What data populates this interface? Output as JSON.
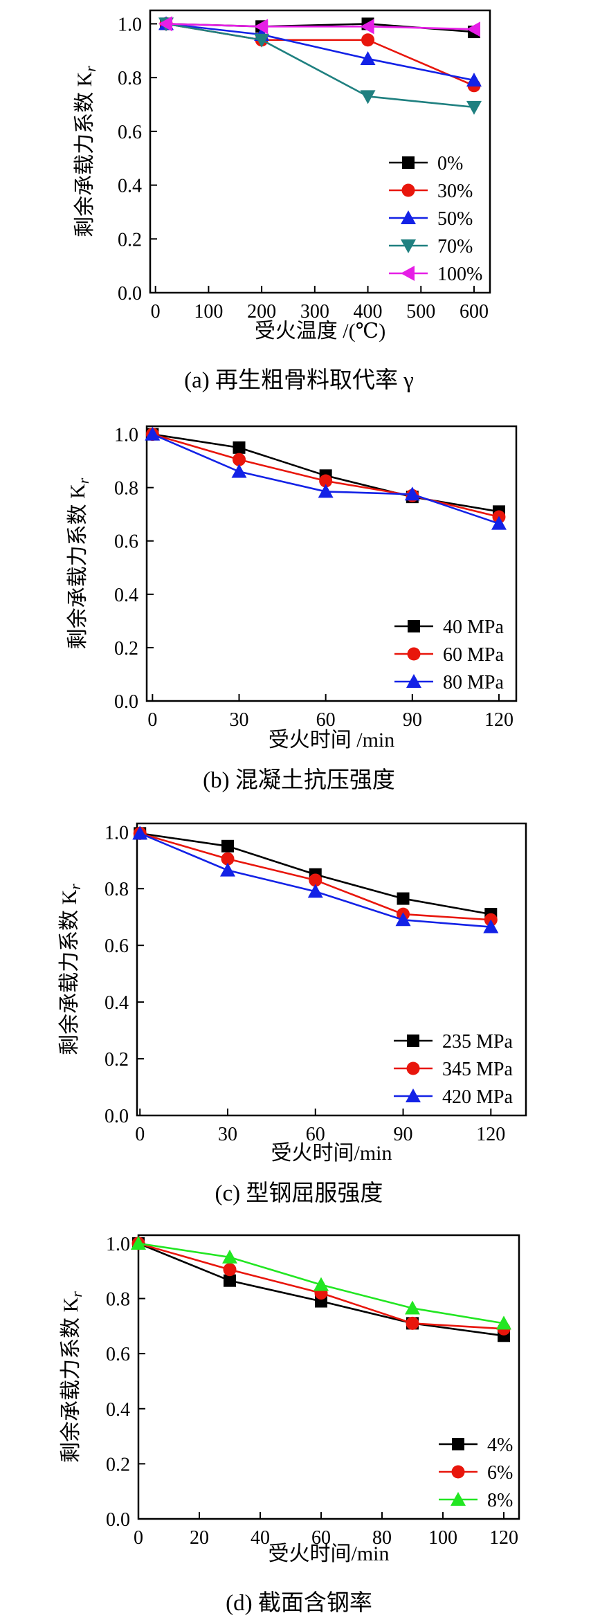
{
  "chart_data": [
    {
      "type": "line",
      "panel": "a",
      "caption": "(a)  再生粗骨料取代率 γ",
      "xlabel": "受火温度 /(℃)",
      "ylabel": "剩余承载力系数 K",
      "ylabel_sub": "r",
      "xlim": [
        -10,
        630
      ],
      "ylim": [
        0.0,
        1.05
      ],
      "xticks": [
        0,
        100,
        200,
        300,
        400,
        500,
        600
      ],
      "yticks": [
        0.0,
        0.2,
        0.4,
        0.6,
        0.8,
        1.0
      ],
      "x": [
        20,
        200,
        400,
        600
      ],
      "legend_position": "bottom-right",
      "series": [
        {
          "name": "0%",
          "color": "#000000",
          "marker": "square",
          "values": [
            1.0,
            0.99,
            1.0,
            0.97
          ]
        },
        {
          "name": "30%",
          "color": "#e8160c",
          "marker": "circle",
          "values": [
            1.0,
            0.94,
            0.94,
            0.77
          ]
        },
        {
          "name": "50%",
          "color": "#1322e6",
          "marker": "triangle-up",
          "values": [
            1.0,
            0.96,
            0.87,
            0.79
          ]
        },
        {
          "name": "70%",
          "color": "#1f8080",
          "marker": "triangle-down",
          "values": [
            1.0,
            0.94,
            0.73,
            0.69
          ]
        },
        {
          "name": "100%",
          "color": "#e61ee6",
          "marker": "triangle-left",
          "values": [
            1.0,
            0.99,
            0.99,
            0.98
          ]
        }
      ]
    },
    {
      "type": "line",
      "panel": "b",
      "caption": "(b)  混凝土抗压强度",
      "xlabel": "受火时间 /min",
      "ylabel": "剩余承载力系数 K",
      "ylabel_sub": "r",
      "xlim": [
        -2,
        126
      ],
      "ylim": [
        0.0,
        1.03
      ],
      "xticks": [
        0,
        30,
        60,
        90,
        120
      ],
      "yticks": [
        0.0,
        0.2,
        0.4,
        0.6,
        0.8,
        1.0
      ],
      "x": [
        0,
        30,
        60,
        90,
        120
      ],
      "legend_position": "bottom-right",
      "series": [
        {
          "name": "40 MPa",
          "color": "#000000",
          "marker": "square",
          "values": [
            1.0,
            0.95,
            0.845,
            0.765,
            0.71
          ]
        },
        {
          "name": "60 MPa",
          "color": "#e8160c",
          "marker": "circle",
          "values": [
            1.0,
            0.905,
            0.825,
            0.77,
            0.69
          ]
        },
        {
          "name": "80 MPa",
          "color": "#1322e6",
          "marker": "triangle-up",
          "values": [
            1.0,
            0.86,
            0.785,
            0.775,
            0.665
          ]
        }
      ]
    },
    {
      "type": "line",
      "panel": "c",
      "caption": "(c)  型钢屈服强度",
      "xlabel": "受火时间/min",
      "ylabel": "剩余承载力系数 K",
      "ylabel_sub": "r",
      "xlim": [
        -1,
        132
      ],
      "ylim": [
        0.0,
        1.03
      ],
      "xticks": [
        0,
        30,
        60,
        90,
        120
      ],
      "yticks": [
        0.0,
        0.2,
        0.4,
        0.6,
        0.8,
        1.0
      ],
      "x": [
        0,
        30,
        60,
        90,
        120
      ],
      "legend_position": "bottom-right",
      "series": [
        {
          "name": "235 MPa",
          "color": "#000000",
          "marker": "square",
          "values": [
            0.995,
            0.95,
            0.85,
            0.765,
            0.71
          ]
        },
        {
          "name": "345 MPa",
          "color": "#e8160c",
          "marker": "circle",
          "values": [
            0.995,
            0.905,
            0.83,
            0.71,
            0.69
          ]
        },
        {
          "name": "420 MPa",
          "color": "#1322e6",
          "marker": "triangle-up",
          "values": [
            0.995,
            0.865,
            0.79,
            0.69,
            0.665
          ]
        }
      ]
    },
    {
      "type": "line",
      "panel": "d",
      "caption": "(d)  截面含钢率",
      "xlabel": "受火时间/min",
      "ylabel": "剩余承载力系数 K",
      "ylabel_sub": "r",
      "xlim": [
        0,
        125
      ],
      "ylim": [
        0.0,
        1.03
      ],
      "xticks": [
        0,
        20,
        40,
        60,
        80,
        100,
        120
      ],
      "yticks": [
        0.0,
        0.2,
        0.4,
        0.6,
        0.8,
        1.0
      ],
      "x": [
        0,
        30,
        60,
        90,
        120
      ],
      "legend_position": "bottom-right",
      "series": [
        {
          "name": "4%",
          "color": "#000000",
          "marker": "square",
          "values": [
            1.0,
            0.865,
            0.79,
            0.71,
            0.665
          ]
        },
        {
          "name": "6%",
          "color": "#e8160c",
          "marker": "circle",
          "values": [
            1.0,
            0.905,
            0.82,
            0.71,
            0.69
          ]
        },
        {
          "name": "8%",
          "color": "#22e622",
          "marker": "triangle-up",
          "values": [
            1.0,
            0.95,
            0.85,
            0.765,
            0.71
          ]
        }
      ]
    }
  ]
}
